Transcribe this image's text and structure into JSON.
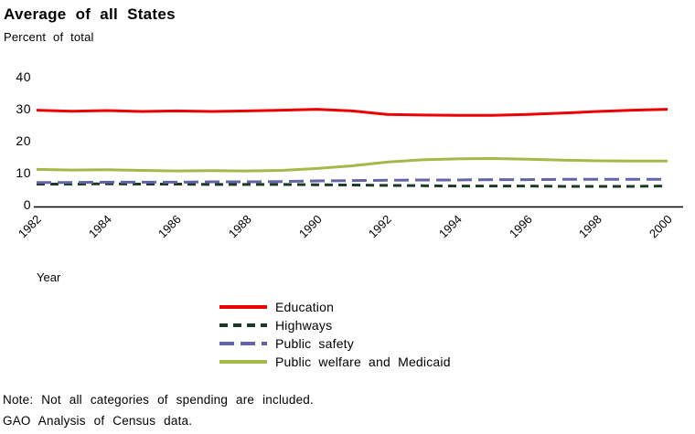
{
  "header": {
    "title": "Average of all States",
    "subtitle": "Percent of total"
  },
  "chart_data": {
    "type": "line",
    "x": [
      1982,
      1983,
      1984,
      1985,
      1986,
      1987,
      1988,
      1989,
      1990,
      1991,
      1992,
      1993,
      1994,
      1995,
      1996,
      1997,
      1998,
      1999,
      2000
    ],
    "series": [
      {
        "name": "Education",
        "color": "#ec0000",
        "dash": null,
        "values": [
          30.1,
          29.8,
          30.0,
          29.7,
          29.9,
          29.7,
          29.9,
          30.1,
          30.4,
          29.9,
          28.8,
          28.6,
          28.5,
          28.5,
          28.8,
          29.2,
          29.7,
          30.1,
          30.4
        ]
      },
      {
        "name": "Highways",
        "color": "#1d3a26",
        "dash": [
          9,
          6
        ],
        "values": [
          7.0,
          7.0,
          7.1,
          7.0,
          7.0,
          6.9,
          6.9,
          6.9,
          6.8,
          6.7,
          6.6,
          6.5,
          6.4,
          6.4,
          6.4,
          6.3,
          6.3,
          6.3,
          6.4
        ]
      },
      {
        "name": "Public safety",
        "color": "#6363a8",
        "dash": [
          16,
          7
        ],
        "values": [
          7.5,
          7.5,
          7.6,
          7.6,
          7.6,
          7.7,
          7.7,
          7.8,
          8.0,
          8.1,
          8.2,
          8.3,
          8.3,
          8.4,
          8.4,
          8.5,
          8.5,
          8.5,
          8.5
        ]
      },
      {
        "name": "Public welfare and Medicaid",
        "color": "#a4ba48",
        "dash": null,
        "values": [
          11.6,
          11.4,
          11.5,
          11.3,
          11.1,
          11.2,
          11.1,
          11.3,
          11.9,
          12.7,
          13.9,
          14.6,
          14.9,
          15.0,
          14.8,
          14.5,
          14.3,
          14.2,
          14.2
        ]
      }
    ],
    "legend_order": [
      "Education",
      "Highways",
      "Public safety",
      "Public welfare and Medicaid"
    ],
    "title": "Average of all States",
    "subtitle": "Percent of total",
    "xlabel": "Year",
    "ylabel": "",
    "ylim": [
      0,
      40
    ],
    "yticks": [
      0,
      10,
      20,
      30,
      40
    ],
    "xticks": [
      1982,
      1984,
      1986,
      1988,
      1990,
      1992,
      1994,
      1996,
      1998,
      2000
    ],
    "grid": false,
    "legend_position": "bottom"
  },
  "notes": {
    "line1": "Note: Not all categories of spending are included.",
    "line2": "GAO Analysis of Census data."
  }
}
